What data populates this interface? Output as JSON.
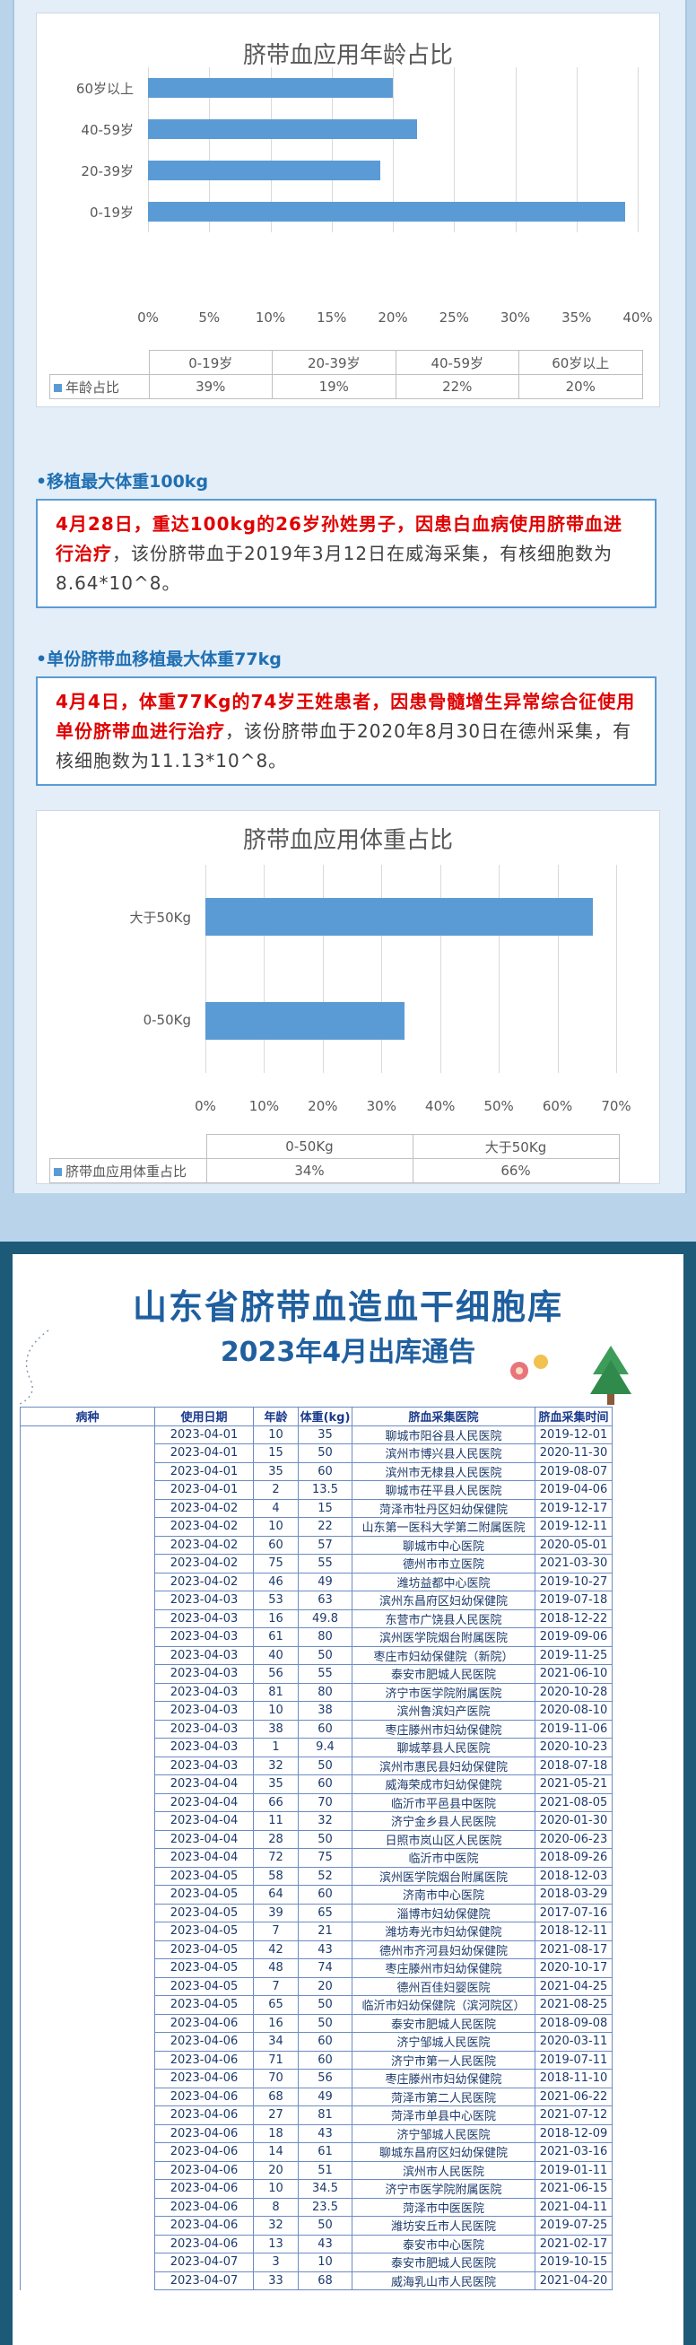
{
  "charts": [
    {
      "title": "脐带血应用年龄占比",
      "categories": [
        "60岁以上",
        "40-59岁",
        "20-39岁",
        "0-19岁"
      ],
      "x_ticks": [
        "0%",
        "5%",
        "10%",
        "15%",
        "20%",
        "25%",
        "30%",
        "35%",
        "40%"
      ],
      "table_headers": [
        "0-19岁",
        "20-39岁",
        "40-59岁",
        "60岁以上"
      ],
      "legend": "年龄占比",
      "table_values": [
        "39%",
        "19%",
        "22%",
        "20%"
      ]
    },
    {
      "title": "脐带血应用体重占比",
      "categories": [
        "大于50Kg",
        "0-50Kg"
      ],
      "x_ticks": [
        "0%",
        "10%",
        "20%",
        "30%",
        "40%",
        "50%",
        "60%",
        "70%"
      ],
      "table_headers": [
        "0-50Kg",
        "大于50Kg"
      ],
      "legend": "脐带血应用体重占比",
      "table_values": [
        "34%",
        "66%"
      ]
    }
  ],
  "chart_data": [
    {
      "type": "bar",
      "orientation": "horizontal",
      "title": "脐带血应用年龄占比",
      "categories": [
        "0-19岁",
        "20-39岁",
        "40-59岁",
        "60岁以上"
      ],
      "series": [
        {
          "name": "年龄占比",
          "values": [
            39,
            19,
            22,
            20
          ]
        }
      ],
      "xlim": [
        0,
        40
      ],
      "grid": true
    },
    {
      "type": "bar",
      "orientation": "horizontal",
      "title": "脐带血应用体重占比",
      "categories": [
        "0-50Kg",
        "大于50Kg"
      ],
      "series": [
        {
          "name": "脐带血应用体重占比",
          "values": [
            34,
            66
          ]
        }
      ],
      "xlim": [
        0,
        70
      ],
      "grid": true
    }
  ],
  "sections": {
    "max_weight": {
      "title": "•移植最大体重100kg",
      "red": "4月28日，重达100kg的26岁孙姓男子，因患白血病使用脐带血进行治疗",
      "text": "，该份脐带血于2019年3月12日在威海采集，有核细胞数为8.64*10^8。"
    },
    "single_unit": {
      "title": "•单份脐带血移植最大体重77kg",
      "red": "4月4日，体重77Kg的74岁王姓患者，因患骨髓增生异常综合征使用单份脐带血进行治疗",
      "text": "，该份脐带血于2020年8月30日在德州采集，有核细胞数为11.13*10^8。"
    }
  },
  "poster": {
    "title_line1": "山东省脐带血造血干细胞库",
    "title_line2": "2023年4月出库通告",
    "headers": [
      "病种",
      "使用日期",
      "年龄",
      "体重(kg)",
      "脐血采集医院",
      "脐血采集时间"
    ],
    "rows": [
      [
        "2023-04-01",
        "10",
        "35",
        "聊城市阳谷县人民医院",
        "2019-12-01"
      ],
      [
        "2023-04-01",
        "15",
        "50",
        "滨州市博兴县人民医院",
        "2020-11-30"
      ],
      [
        "2023-04-01",
        "35",
        "60",
        "滨州市无棣县人民医院",
        "2019-08-07"
      ],
      [
        "2023-04-01",
        "2",
        "13.5",
        "聊城市茌平县人民医院",
        "2019-04-06"
      ],
      [
        "2023-04-02",
        "4",
        "15",
        "菏泽市牡丹区妇幼保健院",
        "2019-12-17"
      ],
      [
        "2023-04-02",
        "10",
        "22",
        "山东第一医科大学第二附属医院",
        "2019-12-11"
      ],
      [
        "2023-04-02",
        "60",
        "57",
        "聊城市中心医院",
        "2020-05-01"
      ],
      [
        "2023-04-02",
        "75",
        "55",
        "德州市市立医院",
        "2021-03-30"
      ],
      [
        "2023-04-02",
        "46",
        "49",
        "潍坊益都中心医院",
        "2019-10-27"
      ],
      [
        "2023-04-03",
        "53",
        "63",
        "滨州东昌府区妇幼保健院",
        "2019-07-18"
      ],
      [
        "2023-04-03",
        "16",
        "49.8",
        "东营市广饶县人民医院",
        "2018-12-22"
      ],
      [
        "2023-04-03",
        "61",
        "80",
        "滨州医学院烟台附属医院",
        "2019-09-06"
      ],
      [
        "2023-04-03",
        "40",
        "50",
        "枣庄市妇幼保健院（新院）",
        "2019-11-25"
      ],
      [
        "2023-04-03",
        "56",
        "55",
        "泰安市肥城人民医院",
        "2021-06-10"
      ],
      [
        "2023-04-03",
        "81",
        "80",
        "济宁市医学院附属医院",
        "2020-10-28"
      ],
      [
        "2023-04-03",
        "10",
        "38",
        "滨州鲁滨妇产医院",
        "2020-08-10"
      ],
      [
        "2023-04-03",
        "38",
        "60",
        "枣庄滕州市妇幼保健院",
        "2019-11-06"
      ],
      [
        "2023-04-03",
        "1",
        "9.4",
        "聊城莘县人民医院",
        "2020-10-23"
      ],
      [
        "2023-04-03",
        "32",
        "50",
        "滨州市惠民县妇幼保健院",
        "2018-07-18"
      ],
      [
        "2023-04-04",
        "35",
        "60",
        "威海荣成市妇幼保健院",
        "2021-05-21"
      ],
      [
        "2023-04-04",
        "66",
        "70",
        "临沂市平邑县中医院",
        "2021-08-05"
      ],
      [
        "2023-04-04",
        "11",
        "32",
        "济宁金乡县人民医院",
        "2020-01-30"
      ],
      [
        "2023-04-04",
        "28",
        "50",
        "日照市岚山区人民医院",
        "2020-06-23"
      ],
      [
        "2023-04-04",
        "72",
        "75",
        "临沂市中医院",
        "2018-09-26"
      ],
      [
        "2023-04-05",
        "58",
        "52",
        "滨州医学院烟台附属医院",
        "2018-12-03"
      ],
      [
        "2023-04-05",
        "64",
        "60",
        "济南市中心医院",
        "2018-03-29"
      ],
      [
        "2023-04-05",
        "39",
        "65",
        "淄博市妇幼保健院",
        "2017-07-16"
      ],
      [
        "2023-04-05",
        "7",
        "21",
        "潍坊寿光市妇幼保健院",
        "2018-12-11"
      ],
      [
        "2023-04-05",
        "42",
        "43",
        "德州市齐河县妇幼保健院",
        "2021-08-17"
      ],
      [
        "2023-04-05",
        "48",
        "74",
        "枣庄滕州市妇幼保健院",
        "2020-10-17"
      ],
      [
        "2023-04-05",
        "7",
        "20",
        "德州百佳妇婴医院",
        "2021-04-25"
      ],
      [
        "2023-04-05",
        "65",
        "50",
        "临沂市妇幼保健院（滨河院区）",
        "2021-08-25"
      ],
      [
        "2023-04-06",
        "16",
        "50",
        "泰安市肥城人民医院",
        "2018-09-08"
      ],
      [
        "2023-04-06",
        "34",
        "60",
        "济宁邹城人民医院",
        "2020-03-11"
      ],
      [
        "2023-04-06",
        "71",
        "60",
        "济宁市第一人民医院",
        "2019-07-11"
      ],
      [
        "2023-04-06",
        "70",
        "56",
        "枣庄滕州市妇幼保健院",
        "2018-11-10"
      ],
      [
        "2023-04-06",
        "68",
        "49",
        "菏泽市第二人民医院",
        "2021-06-22"
      ],
      [
        "2023-04-06",
        "27",
        "81",
        "菏泽市单县中心医院",
        "2021-07-12"
      ],
      [
        "2023-04-06",
        "18",
        "43",
        "济宁邹城人民医院",
        "2018-12-09"
      ],
      [
        "2023-04-06",
        "14",
        "61",
        "聊城东昌府区妇幼保健院",
        "2021-03-16"
      ],
      [
        "2023-04-06",
        "20",
        "51",
        "滨州市人民医院",
        "2019-01-11"
      ],
      [
        "2023-04-06",
        "10",
        "34.5",
        "济宁市医学院附属医院",
        "2021-06-15"
      ],
      [
        "2023-04-06",
        "8",
        "23.5",
        "菏泽市中医医院",
        "2021-04-11"
      ],
      [
        "2023-04-06",
        "32",
        "50",
        "潍坊安丘市人民医院",
        "2019-07-25"
      ],
      [
        "2023-04-06",
        "13",
        "43",
        "泰安市中心医院",
        "2021-02-17"
      ],
      [
        "2023-04-07",
        "3",
        "10",
        "泰安市肥城人民医院",
        "2019-10-15"
      ],
      [
        "2023-04-07",
        "33",
        "68",
        "威海乳山市人民医院",
        "2021-04-20"
      ]
    ]
  }
}
